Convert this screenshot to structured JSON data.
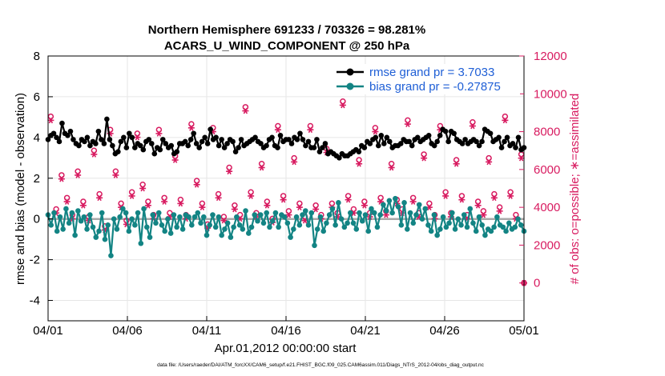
{
  "colors": {
    "rmse": "#000000",
    "bias": "#138484",
    "obs": "#d81b60",
    "legend_text": "#1f5fd6",
    "zero_line": "#a9a9a9",
    "grid": "#e6e6e6"
  },
  "chart_data": {
    "type": "line",
    "title": "Northern Hemisphere 691233 / 703326 = 98.281%",
    "subtitle": "ACARS_U_WIND_COMPONENT @ 250 hPa",
    "xlabel": "Apr.01,2012 00:00:00 start",
    "ylabel_left": "rmse and bias (model - observation)",
    "ylabel_right": "# of obs: o=possible; ∗=assimilated",
    "ylim_left": [
      -5,
      8
    ],
    "yticks_left": [
      "8",
      "6",
      "4",
      "2",
      "0",
      "-2",
      "-4"
    ],
    "ylim_right": [
      -2000,
      12000
    ],
    "yticks_right": [
      "12000",
      "10000",
      "8000",
      "6000",
      "4000",
      "2000",
      "0"
    ],
    "xlim": [
      0,
      30
    ],
    "xticks": [
      {
        "pos": 0,
        "label": "04/01"
      },
      {
        "pos": 5,
        "label": "04/06"
      },
      {
        "pos": 10,
        "label": "04/11"
      },
      {
        "pos": 15,
        "label": "04/16"
      },
      {
        "pos": 20,
        "label": "04/21"
      },
      {
        "pos": 25,
        "label": "04/26"
      },
      {
        "pos": 30,
        "label": "05/01"
      }
    ],
    "legend": {
      "placement": "top-right",
      "rmse_label": "rmse grand pr = 3.7033",
      "bias_label": "bias grand pr = -0.27875"
    },
    "grid": true,
    "series": [
      {
        "name": "rmse",
        "values": [
          3.9,
          4.1,
          4.2,
          4.0,
          3.8,
          4.7,
          4.2,
          4.1,
          4.3,
          3.9,
          3.7,
          3.6,
          3.9,
          3.8,
          4.0,
          3.6,
          3.8,
          3.7,
          4.3,
          3.9,
          3.7,
          4.9,
          3.9,
          3.6,
          3.2,
          3.3,
          3.8,
          4.0,
          3.5,
          4.2,
          4.0,
          3.5,
          3.7,
          3.6,
          3.4,
          3.8,
          3.9,
          3.7,
          3.2,
          3.5,
          3.4,
          3.9,
          3.7,
          3.5,
          3.6,
          3.2,
          3.3,
          3.7,
          3.7,
          3.8,
          3.6,
          3.9,
          4.2,
          3.7,
          3.5,
          3.8,
          4.0,
          3.7,
          4.4,
          3.9,
          4.0,
          3.6,
          3.9,
          3.5,
          3.7,
          3.9,
          3.8,
          3.3,
          3.5,
          3.9,
          3.6,
          3.7,
          3.8,
          3.9,
          4.0,
          3.8,
          3.7,
          3.5,
          3.6,
          3.9,
          4.0,
          3.6,
          3.5,
          4.1,
          3.8,
          3.9,
          3.9,
          3.7,
          4.0,
          3.9,
          4.2,
          3.9,
          3.6,
          3.8,
          3.5,
          3.5,
          3.9,
          3.3,
          3.5,
          3.7,
          3.2,
          3.3,
          3.2,
          3.1,
          3.0,
          3.2,
          3.1,
          3.1,
          3.2,
          3.3,
          3.4,
          3.3,
          3.6,
          3.5,
          3.8,
          3.7,
          3.9,
          4.0,
          3.6,
          4.1,
          3.7,
          4.0,
          3.8,
          3.5,
          3.6,
          3.6,
          3.7,
          3.9,
          3.8,
          3.8,
          3.6,
          3.9,
          4.0,
          3.8,
          3.9,
          4.0,
          4.1,
          3.7,
          3.6,
          3.8,
          4.1,
          4.4,
          4.3,
          3.8,
          4.3,
          4.2,
          3.9,
          3.8,
          3.7,
          3.9,
          3.7,
          3.8,
          3.9,
          3.8,
          3.6,
          3.8,
          4.4,
          4.3,
          4.2,
          3.8,
          3.9,
          4.0,
          3.5,
          3.8,
          4.0,
          3.6,
          3.7,
          3.5,
          4.0,
          3.4,
          3.5
        ]
      },
      {
        "name": "bias",
        "values": [
          0.2,
          -0.3,
          0.3,
          -0.6,
          0.1,
          -0.5,
          0.5,
          -0.2,
          0.3,
          -0.8,
          0.4,
          -0.1,
          0.1,
          -0.5,
          0.2,
          -0.4,
          -0.9,
          -0.6,
          0.3,
          -1.0,
          -0.3,
          -1.8,
          0.0,
          -0.5,
          0.1,
          0.5,
          0.3,
          -0.6,
          0.0,
          -0.3,
          0.3,
          -1.2,
          0.5,
          -0.4,
          -0.9,
          0.2,
          -0.2,
          0.3,
          -0.3,
          -0.6,
          0.0,
          -0.7,
          0.2,
          -0.4,
          0.1,
          -0.5,
          0.2,
          0.1,
          -0.3,
          0.1,
          0.3,
          -0.2,
          0.1,
          -0.8,
          -0.3,
          0.2,
          -0.4,
          0.1,
          -0.8,
          -0.5,
          -0.2,
          -0.9,
          -0.4,
          0.1,
          -0.3,
          -0.5,
          0.4,
          -0.7,
          -0.4,
          0.2,
          -0.1,
          0.2,
          -0.2,
          0.3,
          -0.4,
          -0.1,
          0.3,
          -0.4,
          0.2,
          0.1,
          -0.2,
          -0.9,
          -0.5,
          0.1,
          -0.3,
          0.2,
          0.4,
          -0.3,
          0.3,
          -1.3,
          -0.5,
          0.1,
          -0.6,
          -0.2,
          0.2,
          0.5,
          -0.3,
          0.8,
          0.0,
          -0.4,
          -0.2,
          0.3,
          -0.2,
          -0.5,
          0.3,
          -0.1,
          0.2,
          -0.6,
          0.5,
          0.3,
          -0.4,
          0.2,
          0.7,
          0.4,
          0.9,
          0.3,
          1.0,
          0.6,
          -0.3,
          0.8,
          -0.5,
          0.3,
          -0.2,
          0.2,
          0.7,
          0.0,
          0.5,
          -0.3,
          -0.6,
          0.2,
          -0.8,
          -0.5,
          0.1,
          -0.4,
          -0.2,
          0.3,
          -0.5,
          0.0,
          -0.3,
          0.2,
          -0.4,
          0.5,
          -0.2,
          -0.6,
          0.1,
          -0.3,
          -0.8,
          -0.5,
          -0.6,
          -0.4,
          0.1,
          -0.3,
          -0.4,
          -0.6,
          -0.2,
          -0.5,
          -0.4,
          0.0,
          -0.3,
          -0.6
        ]
      },
      {
        "name": "obs_possible",
        "values": [
          8800,
          3900,
          5700,
          4500,
          3600,
          5900,
          4300,
          3500,
          7000,
          4700,
          3000,
          8100,
          5900,
          4200,
          3300,
          4800,
          7900,
          5200,
          4300,
          3600,
          8100,
          4500,
          3700,
          6700,
          4400,
          3600,
          8400,
          5400,
          4200,
          3100,
          8200,
          4700,
          3500,
          6100,
          4100,
          3600,
          9300,
          4800,
          3700,
          6300,
          4300,
          3400,
          8300,
          4600,
          3800,
          6600,
          4200,
          3500,
          8300,
          4100,
          3600,
          7100,
          4200,
          3700,
          9600,
          4600,
          3900,
          6500,
          4300,
          3700,
          8200,
          4500,
          3800,
          6300,
          4400,
          3900,
          8600,
          4500,
          3700,
          6800,
          4200,
          3600,
          8300,
          4800,
          3700,
          6500,
          4600,
          3600,
          8500,
          4300,
          3800,
          6600,
          4700,
          4000,
          8800,
          4800,
          3600,
          6800
        ]
      },
      {
        "name": "obs_assimilated",
        "values": [
          8600,
          3700,
          5500,
          4300,
          3400,
          5700,
          4100,
          3300,
          6800,
          4500,
          2800,
          7900,
          5700,
          4000,
          3100,
          4600,
          7700,
          5000,
          4100,
          3400,
          7900,
          4300,
          3500,
          6500,
          4200,
          3400,
          8200,
          5200,
          4000,
          2900,
          8000,
          4500,
          3300,
          5900,
          3900,
          3400,
          9100,
          4600,
          3500,
          6100,
          4100,
          3200,
          8100,
          4400,
          3600,
          6400,
          4000,
          3300,
          8100,
          3900,
          3400,
          6900,
          4000,
          3500,
          9400,
          4400,
          3700,
          6300,
          4100,
          3500,
          8000,
          4300,
          3600,
          6100,
          4200,
          3700,
          8400,
          4300,
          3500,
          6600,
          4000,
          3400,
          8100,
          4600,
          3500,
          6300,
          4400,
          3400,
          8300,
          4100,
          3600,
          6400,
          4500,
          3800,
          8600,
          4600,
          3400,
          6600
        ]
      },
      {
        "name": "obs_zero_marker",
        "values": [
          0
        ]
      }
    ]
  },
  "footer": {
    "text": "data file: /Users/raeder/DAI/ATM_forcXX/CAM6_setup/f.e21.FHIST_BGC.f09_025.CAM6assim.011/Diags_NTrS_2012-04/obs_diag_output.nc"
  }
}
